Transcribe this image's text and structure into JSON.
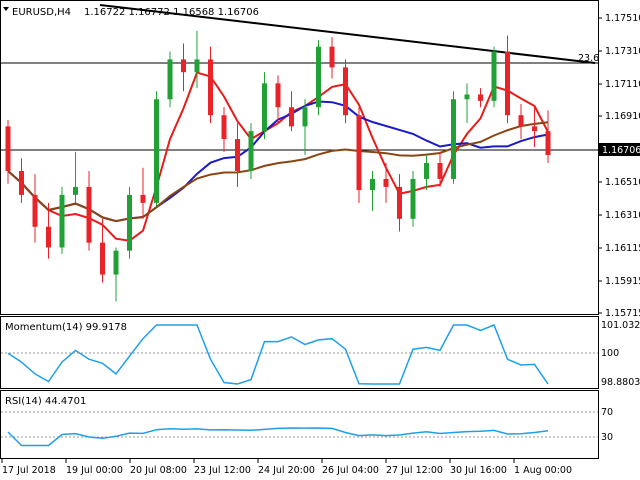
{
  "header": {
    "symbol_tf": "EURUSD,H4",
    "ohlc": "1.16722 1.16772 1.16568 1.16706"
  },
  "main_chart": {
    "price_axis_labels": [
      "1.17510",
      "1.17310",
      "1.17110",
      "1.16910",
      "1.16706",
      "1.16510",
      "1.16310",
      "1.16115",
      "1.15915",
      "1.15715"
    ],
    "current_price_label": "1.16706",
    "fib_label": "23.6",
    "colors": {
      "bull": "#21a035",
      "bear": "#e8232a",
      "ma_red": "#e81b1b",
      "ma_blue": "#1a1ac8",
      "ma_brown": "#8b4513",
      "trendline": "#000000",
      "price_line": "#000000"
    }
  },
  "momentum": {
    "title": "Momentum(14) 99.9178",
    "axis_labels": [
      "101.0327",
      "100",
      "98.8803"
    ],
    "color": "#1ea0e8"
  },
  "rsi": {
    "title": "RSI(14) 44.4701",
    "axis_labels": [
      "70",
      "30"
    ],
    "color": "#1ea0e8"
  },
  "x_axis": {
    "labels": [
      "17 Jul 2018",
      "19 Jul 00:00",
      "20 Jul 08:00",
      "23 Jul 12:00",
      "24 Jul 20:00",
      "26 Jul 04:00",
      "27 Jul 12:00",
      "30 Jul 16:00",
      "1 Aug 00:00"
    ]
  },
  "chart_data": {
    "type": "candlestick",
    "title": "EURUSD,H4",
    "candles_approx": [
      [
        1.1688,
        1.1692,
        1.1652,
        1.166
      ],
      [
        1.166,
        1.1668,
        1.164,
        1.1645
      ],
      [
        1.1645,
        1.1658,
        1.1615,
        1.1625
      ],
      [
        1.1625,
        1.164,
        1.1605,
        1.1612
      ],
      [
        1.1612,
        1.165,
        1.1608,
        1.1645
      ],
      [
        1.1645,
        1.1672,
        1.164,
        1.165
      ],
      [
        1.165,
        1.166,
        1.161,
        1.1615
      ],
      [
        1.1615,
        1.163,
        1.159,
        1.1595
      ],
      [
        1.1595,
        1.1612,
        1.1578,
        1.161
      ],
      [
        1.161,
        1.165,
        1.1605,
        1.1645
      ],
      [
        1.1645,
        1.1662,
        1.163,
        1.164
      ],
      [
        1.164,
        1.171,
        1.1638,
        1.1705
      ],
      [
        1.1705,
        1.1735,
        1.17,
        1.173
      ],
      [
        1.173,
        1.174,
        1.171,
        1.1722
      ],
      [
        1.1722,
        1.1748,
        1.1712,
        1.173
      ],
      [
        1.173,
        1.1738,
        1.169,
        1.1695
      ],
      [
        1.1695,
        1.17,
        1.1672,
        1.168
      ],
      [
        1.168,
        1.169,
        1.165,
        1.166
      ],
      [
        1.166,
        1.169,
        1.1655,
        1.1685
      ],
      [
        1.1685,
        1.1722,
        1.168,
        1.1715
      ],
      [
        1.1715,
        1.172,
        1.169,
        1.17
      ],
      [
        1.17,
        1.171,
        1.1685,
        1.1688
      ],
      [
        1.1688,
        1.1705,
        1.167,
        1.17
      ],
      [
        1.17,
        1.1742,
        1.1695,
        1.1738
      ],
      [
        1.1738,
        1.1744,
        1.1718,
        1.1725
      ],
      [
        1.1725,
        1.173,
        1.169,
        1.1695
      ],
      [
        1.1695,
        1.17,
        1.164,
        1.1648
      ],
      [
        1.1648,
        1.166,
        1.1635,
        1.1655
      ],
      [
        1.1655,
        1.1665,
        1.164,
        1.165
      ],
      [
        1.165,
        1.1658,
        1.1622,
        1.163
      ],
      [
        1.163,
        1.166,
        1.1625,
        1.1655
      ],
      [
        1.1655,
        1.167,
        1.1648,
        1.1665
      ],
      [
        1.1665,
        1.1672,
        1.165,
        1.1655
      ],
      [
        1.1655,
        1.171,
        1.1652,
        1.1705
      ],
      [
        1.1705,
        1.1715,
        1.169,
        1.1708
      ],
      [
        1.1708,
        1.1712,
        1.17,
        1.1704
      ],
      [
        1.1704,
        1.1738,
        1.17,
        1.1735
      ],
      [
        1.1735,
        1.1745,
        1.169,
        1.1695
      ],
      [
        1.1695,
        1.1702,
        1.168,
        1.1688
      ],
      [
        1.1688,
        1.17,
        1.1675,
        1.1685
      ],
      [
        1.1685,
        1.1698,
        1.1665,
        1.167
      ]
    ],
    "ylim": [
      1.15715,
      1.1756
    ]
  }
}
